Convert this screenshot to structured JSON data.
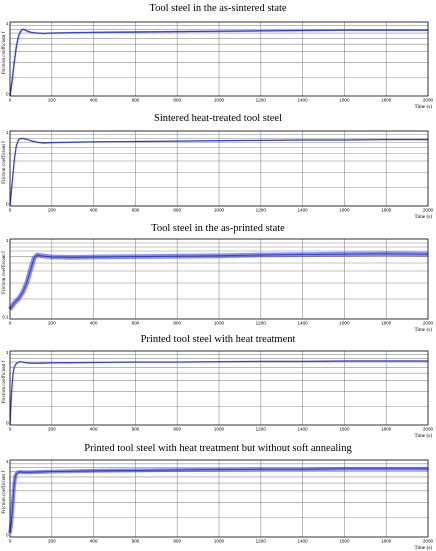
{
  "colors": {
    "series": "#2b35d8",
    "grid": "#8c8c8c"
  },
  "chart_data": [
    {
      "type": "line",
      "title": "Tool steel in the as-sintered state",
      "xlabel": "Time (s)",
      "ylabel": "Friction coefficient f",
      "xlim": [
        0,
        2000
      ],
      "ylim": [
        0,
        1
      ],
      "y_tick_labels": [
        "1",
        "0"
      ],
      "x_ticks": [
        0,
        200,
        400,
        600,
        800,
        1000,
        1200,
        1400,
        1600,
        1800,
        2000
      ],
      "grid": true,
      "series": [
        {
          "x": [
            0,
            10,
            20,
            30,
            40,
            50,
            60,
            70,
            80,
            100,
            130,
            160,
            200,
            300,
            400,
            600,
            800,
            1000,
            1200,
            1400,
            1600,
            1800,
            2000
          ],
          "y": [
            0.0,
            0.2,
            0.45,
            0.66,
            0.8,
            0.87,
            0.9,
            0.895,
            0.88,
            0.86,
            0.85,
            0.845,
            0.85,
            0.855,
            0.86,
            0.865,
            0.87,
            0.875,
            0.88,
            0.885,
            0.89,
            0.89,
            0.89
          ],
          "band": 0.012
        }
      ]
    },
    {
      "type": "line",
      "title": "Sintered heat-treated tool steel",
      "xlabel": "Time (s)",
      "ylabel": "Friction coefficient f",
      "xlim": [
        0,
        2000
      ],
      "ylim": [
        0,
        1
      ],
      "y_tick_labels": [
        "1",
        "0"
      ],
      "x_ticks": [
        0,
        200,
        400,
        600,
        800,
        1000,
        1200,
        1400,
        1600,
        1800,
        2000
      ],
      "grid": true,
      "series": [
        {
          "x": [
            0,
            10,
            20,
            30,
            40,
            50,
            60,
            80,
            100,
            130,
            160,
            200,
            300,
            400,
            600,
            800,
            1000,
            1200,
            1400,
            1600,
            1800,
            2000
          ],
          "y": [
            0.0,
            0.3,
            0.6,
            0.8,
            0.88,
            0.9,
            0.9,
            0.89,
            0.87,
            0.85,
            0.84,
            0.845,
            0.85,
            0.855,
            0.86,
            0.865,
            0.87,
            0.875,
            0.88,
            0.88,
            0.885,
            0.885
          ],
          "band": 0.01
        }
      ]
    },
    {
      "type": "line",
      "title": "Tool steel in the as-printed state",
      "xlabel": "Time (s)",
      "ylabel": "Friction coefficient f",
      "xlim": [
        0,
        2000
      ],
      "ylim": [
        0,
        1
      ],
      "y_tick_labels": [
        "1",
        "0.1"
      ],
      "x_ticks": [
        0,
        200,
        400,
        600,
        800,
        1000,
        1200,
        1400,
        1600,
        1800,
        2000
      ],
      "grid": true,
      "series": [
        {
          "x": [
            0,
            10,
            20,
            40,
            60,
            80,
            100,
            115,
            130,
            150,
            200,
            300,
            400,
            600,
            800,
            1000,
            1200,
            1400,
            1600,
            1800,
            2000
          ],
          "y": [
            0.12,
            0.16,
            0.2,
            0.25,
            0.33,
            0.45,
            0.63,
            0.76,
            0.8,
            0.79,
            0.775,
            0.77,
            0.775,
            0.78,
            0.785,
            0.79,
            0.8,
            0.805,
            0.81,
            0.815,
            0.81
          ],
          "band": 0.03
        }
      ]
    },
    {
      "type": "line",
      "title": "Printed tool steel with heat treatment",
      "xlabel": "Time (s)",
      "ylabel": "Friction coefficient f",
      "xlim": [
        0,
        2000
      ],
      "ylim": [
        0,
        1
      ],
      "y_tick_labels": [
        "1",
        "0"
      ],
      "x_ticks": [
        0,
        200,
        400,
        600,
        800,
        1000,
        1200,
        1400,
        1600,
        1800,
        2000
      ],
      "grid": true,
      "series": [
        {
          "x": [
            0,
            5,
            10,
            15,
            20,
            30,
            40,
            50,
            60,
            80,
            100,
            150,
            200,
            300,
            400,
            600,
            800,
            1000,
            1200,
            1400,
            1600,
            1800,
            2000
          ],
          "y": [
            0.0,
            0.3,
            0.55,
            0.7,
            0.78,
            0.83,
            0.85,
            0.855,
            0.85,
            0.84,
            0.835,
            0.835,
            0.84,
            0.84,
            0.845,
            0.85,
            0.85,
            0.855,
            0.86,
            0.86,
            0.865,
            0.865,
            0.865
          ],
          "band": 0.01
        }
      ]
    },
    {
      "type": "line",
      "title": "Printed tool steel with heat treatment but without soft annealing",
      "xlabel": "Time (s)",
      "ylabel": "Friction coefficient f",
      "xlim": [
        0,
        2000
      ],
      "ylim": [
        0,
        1
      ],
      "y_tick_labels": [
        "1",
        "0"
      ],
      "x_ticks": [
        0,
        200,
        400,
        600,
        800,
        1000,
        1200,
        1400,
        1600,
        1800,
        2000
      ],
      "grid": true,
      "series": [
        {
          "x": [
            0,
            5,
            10,
            15,
            20,
            25,
            30,
            40,
            50,
            60,
            80,
            100,
            150,
            200,
            300,
            400,
            600,
            800,
            1000,
            1200,
            1400,
            1600,
            1800,
            2000
          ],
          "y": [
            0.05,
            0.15,
            0.3,
            0.5,
            0.68,
            0.78,
            0.82,
            0.84,
            0.845,
            0.84,
            0.84,
            0.84,
            0.845,
            0.85,
            0.855,
            0.86,
            0.865,
            0.87,
            0.875,
            0.88,
            0.88,
            0.885,
            0.885,
            0.885
          ],
          "band": 0.025
        }
      ]
    }
  ]
}
